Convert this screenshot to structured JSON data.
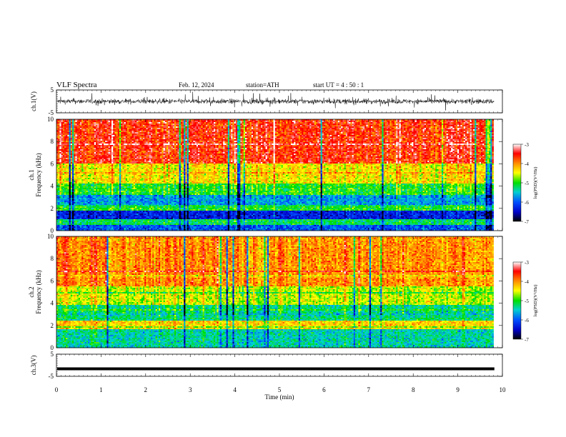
{
  "header": {
    "title": "VLF  Spectra",
    "date": "Feb. 12, 2024",
    "station": "station=ATH",
    "start_ut": "start  UT  =   4  : 50 : 1"
  },
  "chart_data": [
    {
      "type": "line",
      "panel": "ch1-waveform",
      "ylabel": "ch.1(V)",
      "ylim": [
        -5,
        5
      ],
      "yticks": [
        "5",
        "-5"
      ],
      "xlim": [
        0,
        10
      ],
      "data_extent_min": [
        0,
        9.82
      ],
      "description_of_signal": "noisy broadband waveform near 0 V, spikes to about ±3 V"
    },
    {
      "type": "heatmap",
      "panel": "ch1-spectrogram",
      "ylabel_line1": "ch.1",
      "ylabel_line2": "Frequency  (kHz)",
      "ylim": [
        0,
        10
      ],
      "yticks": [
        "0",
        "2",
        "4",
        "6",
        "8",
        "10"
      ],
      "xlim": [
        0,
        10
      ],
      "colorbar": {
        "label": "log(PSD)(V²/Hz)",
        "range": [
          -7,
          -3
        ],
        "ticks": [
          "-3",
          "-4",
          "-5",
          "-6",
          "-7"
        ]
      },
      "bands_kHz": [
        {
          "from": 6.0,
          "to": 10.0,
          "level": -3.6
        },
        {
          "from": 4.2,
          "to": 6.0,
          "level": -4.4
        },
        {
          "from": 3.2,
          "to": 4.2,
          "level": -5.0
        },
        {
          "from": 2.3,
          "to": 3.2,
          "level": -5.7
        },
        {
          "from": 1.8,
          "to": 2.3,
          "level": -5.0
        },
        {
          "from": 1.0,
          "to": 1.8,
          "level": -6.3
        },
        {
          "from": 0.5,
          "to": 1.0,
          "level": -5.2
        },
        {
          "from": 0.0,
          "to": 0.5,
          "level": -6.0
        }
      ]
    },
    {
      "type": "heatmap",
      "panel": "ch2-spectrogram",
      "ylabel_line1": "ch.2",
      "ylabel_line2": "Frequency  (kHz)",
      "ylim": [
        0,
        10
      ],
      "yticks": [
        "0",
        "2",
        "4",
        "6",
        "8",
        "10"
      ],
      "xlim": [
        0,
        10
      ],
      "colorbar": {
        "label": "log(PSD)(V²/Hz)",
        "range": [
          -7,
          -3
        ],
        "ticks": [
          "-3",
          "-4",
          "-5",
          "-6",
          "-7"
        ]
      },
      "bands_kHz": [
        {
          "from": 5.5,
          "to": 10.0,
          "level": -4.0
        },
        {
          "from": 3.8,
          "to": 5.5,
          "level": -4.6
        },
        {
          "from": 2.5,
          "to": 3.8,
          "level": -5.3
        },
        {
          "from": 1.7,
          "to": 2.5,
          "level": -4.3
        },
        {
          "from": 0.0,
          "to": 1.7,
          "level": -5.4
        }
      ]
    },
    {
      "type": "line",
      "panel": "ch3-waveform",
      "ylabel": "ch.3(V)",
      "ylim": [
        -5,
        5
      ],
      "yticks": [
        "5",
        "-5"
      ],
      "xlabel": "Time  (min)",
      "xlim": [
        0,
        10
      ],
      "xticks": [
        "0",
        "1",
        "2",
        "3",
        "4",
        "5",
        "6",
        "7",
        "8",
        "9",
        "10"
      ],
      "level_V": -1.6,
      "data_extent_min": [
        0,
        9.82
      ]
    }
  ]
}
